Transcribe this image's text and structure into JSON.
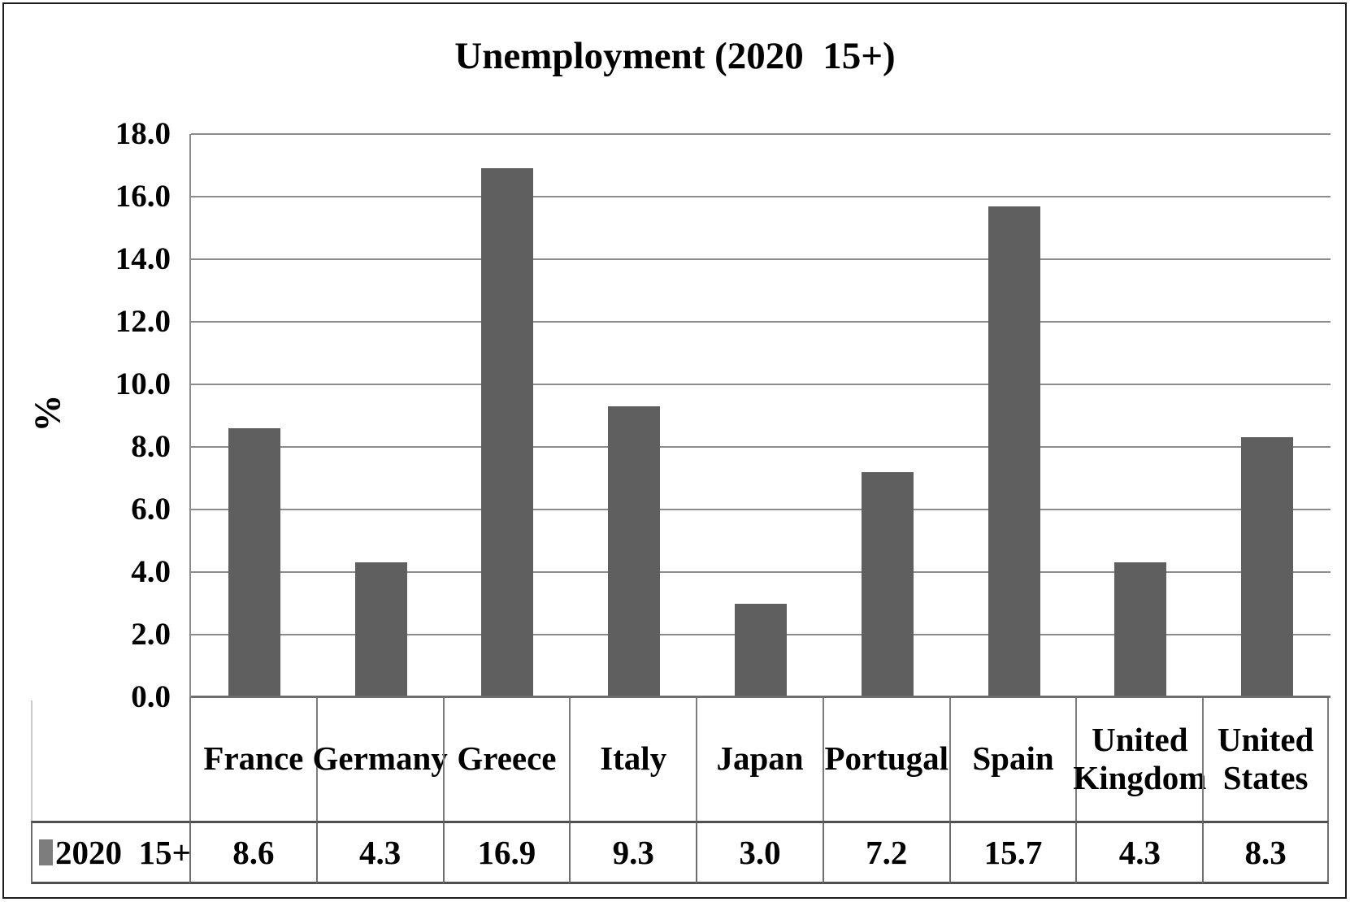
{
  "frame": {
    "background": "#ffffff",
    "border_color": "#1c1c1c"
  },
  "chart_data": {
    "type": "bar",
    "title": "Unemployment (2020  15+)",
    "xlabel": "",
    "ylabel": "%",
    "categories": [
      "France",
      "Germany",
      "Greece",
      "Italy",
      "Japan",
      "Portugal",
      "Spain",
      "United Kingdom",
      "United States"
    ],
    "series": [
      {
        "name": "2020  15+",
        "values": [
          8.6,
          4.3,
          16.9,
          9.3,
          3.0,
          7.2,
          15.7,
          4.3,
          8.3
        ],
        "color": "#5f5f5f"
      }
    ],
    "value_labels": [
      "8.6",
      "4.3",
      "16.9",
      "9.3",
      "3.0",
      "7.2",
      "15.7",
      "4.3",
      "8.3"
    ],
    "ylim": [
      0,
      18
    ],
    "ytick_step": 2,
    "ytick_labels": [
      "18.0",
      "16.0",
      "14.0",
      "12.0",
      "10.0",
      "8.0",
      "6.0",
      "4.0",
      "2.0",
      "0.0"
    ],
    "grid": true,
    "gridline_color": "#8c8c8c",
    "axis_line_color": "#6e6e6e",
    "legend_position": "data-table-left-cell",
    "legend_marker_color": "#7d7d7d",
    "data_table_shown": true
  }
}
